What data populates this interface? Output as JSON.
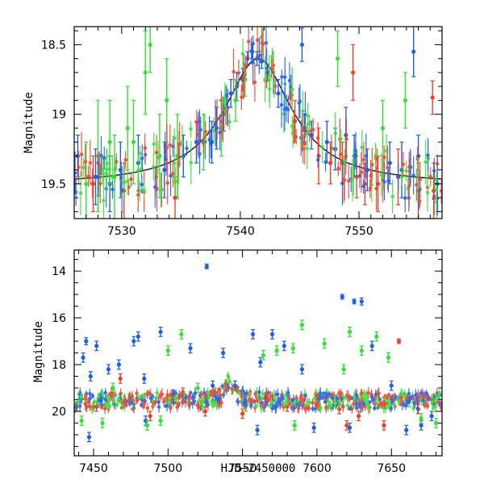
{
  "chart_data": [
    {
      "id": "top",
      "type": "scatter",
      "title": "",
      "xlabel": "",
      "ylabel": "Magnitude",
      "xlim": [
        7526,
        7557
      ],
      "ylim": [
        19.75,
        18.37
      ],
      "y_inverted": true,
      "xticks": [
        7530,
        7540,
        7550
      ],
      "yticks": [
        18.5,
        19,
        19.5
      ],
      "colors": {
        "blue": "#1f5fe6",
        "green": "#33e033",
        "red": "#f0402a",
        "model": "#000000"
      },
      "model_curve": {
        "type": "lorentzian",
        "t0": 7541.5,
        "peak": 18.6,
        "baseline": 19.51,
        "width": 3.5
      },
      "series": [
        {
          "color": "blue",
          "points": [
            [
              7526.3,
              19.3,
              0.15
            ],
            [
              7527.8,
              19.45,
              0.2
            ],
            [
              7529.0,
              19.5,
              0.2
            ],
            [
              7529.9,
              19.4,
              0.2
            ],
            [
              7531.4,
              19.35,
              0.2
            ],
            [
              7533.6,
              19.4,
              0.2
            ],
            [
              7535.2,
              19.3,
              0.15
            ],
            [
              7536.3,
              19.2,
              0.15
            ],
            [
              7537.6,
              19.2,
              0.15
            ],
            [
              7538.0,
              19.1,
              0.15
            ],
            [
              7538.6,
              19.0,
              0.12
            ],
            [
              7539.2,
              18.85,
              0.1
            ],
            [
              7539.7,
              18.8,
              0.1
            ],
            [
              7540.2,
              18.75,
              0.08
            ],
            [
              7540.6,
              18.6,
              0.05
            ],
            [
              7541.0,
              18.55,
              0.05
            ],
            [
              7541.4,
              18.6,
              0.05
            ],
            [
              7541.8,
              18.62,
              0.05
            ],
            [
              7542.3,
              18.7,
              0.06
            ],
            [
              7543.2,
              18.85,
              0.1
            ],
            [
              7545.4,
              19.1,
              0.1
            ],
            [
              7546.0,
              19.15,
              0.1
            ],
            [
              7547.3,
              19.2,
              0.15
            ],
            [
              7548.0,
              19.25,
              0.15
            ],
            [
              7549.6,
              19.3,
              0.15
            ],
            [
              7550.7,
              19.4,
              0.15
            ],
            [
              7552.6,
              19.35,
              0.15
            ],
            [
              7553.6,
              19.4,
              0.2
            ],
            [
              7555.0,
              19.3,
              0.15
            ],
            [
              7556.6,
              19.5,
              0.2
            ],
            [
              7545.2,
              18.5,
              0.12
            ],
            [
              7548.9,
              19.15,
              0.2
            ],
            [
              7554.6,
              18.55,
              0.18
            ]
          ]
        },
        {
          "color": "green",
          "points": [
            [
              7527.0,
              19.5,
              0.3
            ],
            [
              7528.0,
              19.3,
              0.4
            ],
            [
              7529.0,
              19.2,
              0.3
            ],
            [
              7529.4,
              19.45,
              0.3
            ],
            [
              7530.5,
              19.1,
              0.3
            ],
            [
              7531.0,
              19.2,
              0.3
            ],
            [
              7532.0,
              18.7,
              0.3
            ],
            [
              7532.4,
              18.5,
              0.2
            ],
            [
              7533.2,
              19.3,
              0.3
            ],
            [
              7533.8,
              18.9,
              0.3
            ],
            [
              7534.7,
              19.3,
              0.3
            ],
            [
              7536.9,
              19.2,
              0.2
            ],
            [
              7538.4,
              19.1,
              0.2
            ],
            [
              7539.6,
              18.9,
              0.15
            ],
            [
              7540.4,
              18.75,
              0.12
            ],
            [
              7548.2,
              18.6,
              0.2
            ],
            [
              7552.0,
              19.1,
              0.2
            ],
            [
              7553.9,
              18.9,
              0.2
            ]
          ]
        },
        {
          "color": "red",
          "points": [
            [
              7527.6,
              19.5,
              0.2
            ],
            [
              7530.2,
              19.55,
              0.2
            ],
            [
              7534.5,
              19.6,
              0.15
            ],
            [
              7544.6,
              19.05,
              0.15
            ],
            [
              7546.6,
              19.3,
              0.2
            ],
            [
              7547.6,
              19.35,
              0.15
            ],
            [
              7548.6,
              19.35,
              0.15
            ],
            [
              7549.8,
              19.45,
              0.15
            ],
            [
              7550.5,
              19.5,
              0.15
            ],
            [
              7551.6,
              19.5,
              0.2
            ],
            [
              7553.3,
              19.45,
              0.2
            ],
            [
              7555.0,
              19.55,
              0.2
            ],
            [
              7556.3,
              19.55,
              0.2
            ],
            [
              7556.2,
              18.88,
              0.12
            ],
            [
              7549.5,
              18.7,
              0.2
            ]
          ]
        }
      ]
    },
    {
      "id": "bottom",
      "type": "scatter",
      "title": "",
      "xlabel": "HJD−2450000",
      "ylabel": "Magnitude",
      "xlim": [
        7437,
        7684
      ],
      "ylim": [
        21.9,
        13.1
      ],
      "y_inverted": true,
      "xticks": [
        7450,
        7500,
        7550,
        7600,
        7650
      ],
      "yticks": [
        14,
        16,
        18,
        20
      ],
      "colors": {
        "blue": "#1f5fe6",
        "green": "#33e033",
        "red": "#f0402a"
      },
      "series": [
        {
          "color": "blue",
          "points": [
            [
              7443,
              17.7,
              0.2
            ],
            [
              7445,
              17.0,
              0.15
            ],
            [
              7448,
              18.5,
              0.2
            ],
            [
              7452,
              17.2,
              0.2
            ],
            [
              7455,
              19.5,
              0.2
            ],
            [
              7460,
              18.2,
              0.2
            ],
            [
              7467,
              18.0,
              0.2
            ],
            [
              7477,
              17.0,
              0.2
            ],
            [
              7480,
              16.8,
              0.2
            ],
            [
              7484,
              18.6,
              0.2
            ],
            [
              7495,
              16.6,
              0.2
            ],
            [
              7503,
              19.3,
              0.2
            ],
            [
              7515,
              17.3,
              0.2
            ],
            [
              7526,
              13.8,
              0.1
            ],
            [
              7530,
              18.9,
              0.2
            ],
            [
              7537,
              17.5,
              0.2
            ],
            [
              7545,
              18.9,
              0.2
            ],
            [
              7557,
              16.7,
              0.2
            ],
            [
              7562,
              17.9,
              0.2
            ],
            [
              7570,
              16.7,
              0.2
            ],
            [
              7578,
              17.2,
              0.2
            ],
            [
              7590,
              18.2,
              0.2
            ],
            [
              7617,
              15.1,
              0.1
            ],
            [
              7625,
              15.3,
              0.1
            ],
            [
              7630,
              15.3,
              0.15
            ],
            [
              7637,
              17.2,
              0.2
            ],
            [
              7650,
              18.9,
              0.2
            ],
            [
              7660,
              20.8,
              0.2
            ],
            [
              7670,
              20.6,
              0.2
            ],
            [
              7447,
              21.1,
              0.2
            ],
            [
              7485,
              20.4,
              0.2
            ],
            [
              7560,
              20.8,
              0.2
            ],
            [
              7598,
              20.7,
              0.2
            ],
            [
              7622,
              20.7,
              0.2
            ],
            [
              7677,
              20.2,
              0.2
            ]
          ]
        },
        {
          "color": "green",
          "points": [
            [
              7442,
              20.4,
              0.2
            ],
            [
              7456,
              20.5,
              0.2
            ],
            [
              7463,
              19.0,
              0.2
            ],
            [
              7486,
              20.6,
              0.2
            ],
            [
              7500,
              17.4,
              0.2
            ],
            [
              7509,
              16.7,
              0.2
            ],
            [
              7520,
              19.0,
              0.2
            ],
            [
              7552,
              19.8,
              0.2
            ],
            [
              7564,
              17.6,
              0.2
            ],
            [
              7573,
              17.4,
              0.2
            ],
            [
              7584,
              17.3,
              0.2
            ],
            [
              7590,
              16.3,
              0.2
            ],
            [
              7605,
              17.1,
              0.2
            ],
            [
              7618,
              18.2,
              0.2
            ],
            [
              7622,
              16.6,
              0.2
            ],
            [
              7630,
              17.4,
              0.2
            ],
            [
              7640,
              16.8,
              0.2
            ],
            [
              7648,
              17.7,
              0.2
            ],
            [
              7662,
              19.6,
              0.2
            ],
            [
              7670,
              20.3,
              0.2
            ],
            [
              7680,
              20.5,
              0.2
            ],
            [
              7495,
              20.4,
              0.2
            ],
            [
              7585,
              20.6,
              0.2
            ]
          ]
        },
        {
          "color": "red",
          "points": [
            [
              7452,
              19.8,
              0.2
            ],
            [
              7468,
              18.6,
              0.2
            ],
            [
              7488,
              20.2,
              0.2
            ],
            [
              7510,
              19.2,
              0.2
            ],
            [
              7525,
              20.0,
              0.2
            ],
            [
              7534,
              19.6,
              0.2
            ],
            [
              7550,
              20.1,
              0.2
            ],
            [
              7566,
              19.4,
              0.2
            ],
            [
              7580,
              19.8,
              0.2
            ],
            [
              7600,
              19.5,
              0.2
            ],
            [
              7615,
              19.9,
              0.2
            ],
            [
              7628,
              20.2,
              0.2
            ],
            [
              7645,
              19.6,
              0.2
            ],
            [
              7655,
              17.0,
              0.1
            ],
            [
              7668,
              19.9,
              0.2
            ],
            [
              7678,
              19.5,
              0.2
            ],
            [
              7620,
              20.6,
              0.2
            ],
            [
              7645,
              20.6,
              0.2
            ]
          ]
        }
      ]
    }
  ]
}
